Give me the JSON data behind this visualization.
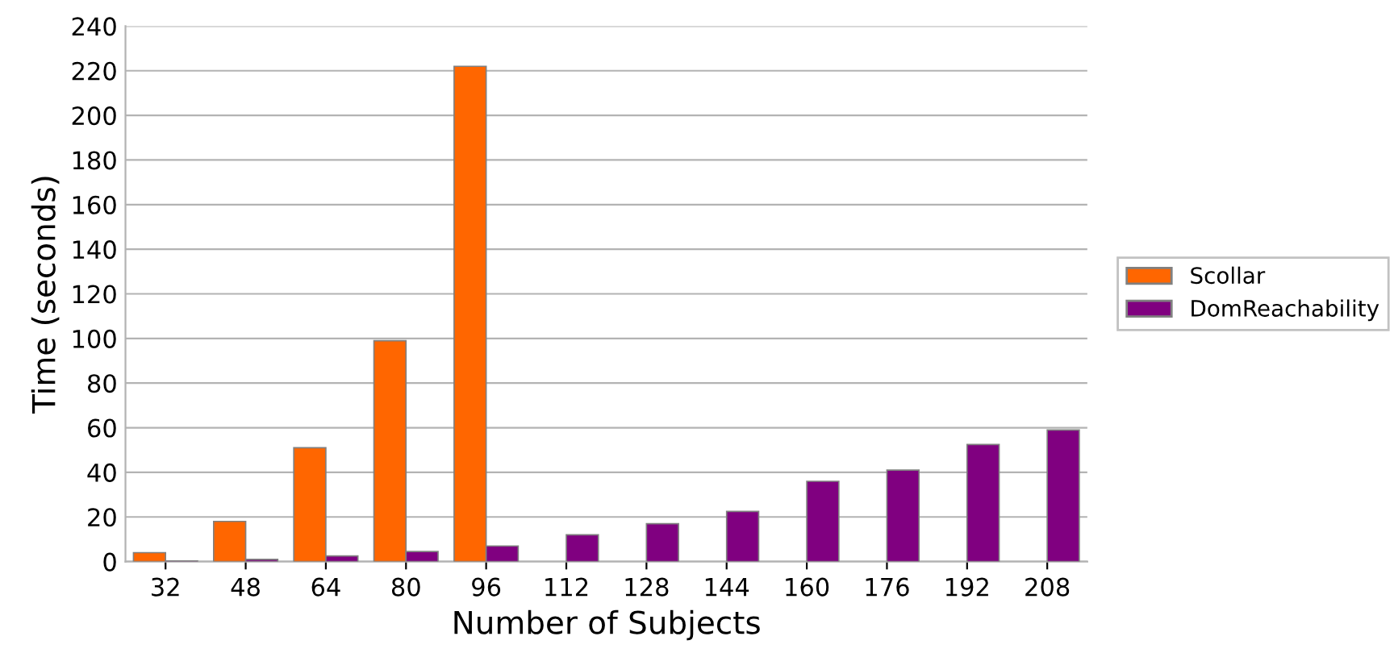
{
  "chart_data": {
    "type": "bar",
    "xlabel": "Number of Subjects",
    "ylabel": "Time (seconds)",
    "categories": [
      "32",
      "48",
      "64",
      "80",
      "96",
      "112",
      "128",
      "144",
      "160",
      "176",
      "192",
      "208"
    ],
    "series": [
      {
        "name": "Scollar",
        "color": "#ff6600",
        "values": [
          4,
          18,
          51,
          99,
          222,
          null,
          null,
          null,
          null,
          null,
          null,
          null
        ]
      },
      {
        "name": "DomReachability",
        "color": "#800080",
        "values": [
          0.3,
          1,
          2.5,
          4.5,
          7,
          12,
          17,
          22.5,
          36,
          41,
          52.5,
          59
        ]
      }
    ],
    "ylim": [
      0,
      240
    ],
    "yticks": [
      0,
      20,
      40,
      60,
      80,
      100,
      120,
      140,
      160,
      180,
      200,
      220,
      240
    ],
    "grid": "y",
    "legend": "right"
  }
}
